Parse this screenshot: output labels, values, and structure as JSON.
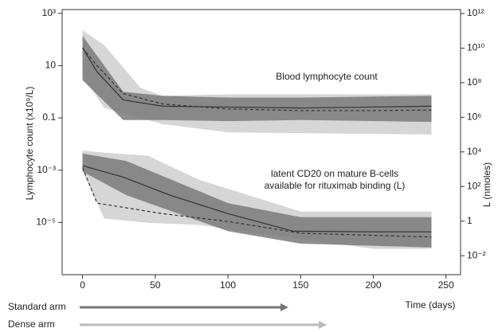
{
  "chart_data": {
    "type": "line",
    "ylabel": "Lymphocyte count (x10⁹/L)",
    "y2label": "L (nmoles)",
    "xlabel": "Time (days)",
    "log_scale": true,
    "xlim": [
      -14,
      260
    ],
    "xticks": [
      0,
      50,
      100,
      150,
      200,
      250
    ],
    "ylim": [
      1e-07,
      1400
    ],
    "yticks": [
      {
        "value": 1000,
        "label": "10³"
      },
      10,
      0.1,
      {
        "value": 0.001,
        "label": "10⁻³"
      },
      {
        "value": 1e-05,
        "label": "10⁻⁵"
      }
    ],
    "y2lim": [
      0.0008,
      1700000000000.0
    ],
    "y2ticks": [
      {
        "value": 1000000000000.0,
        "label": "10¹²"
      },
      {
        "value": 10000000000.0,
        "label": "10¹⁰"
      },
      {
        "value": 100000000.0,
        "label": "10⁸"
      },
      {
        "value": 1000000.0,
        "label": "10⁶"
      },
      {
        "value": 10000,
        "label": "10⁴"
      },
      {
        "value": 100,
        "label": "10²"
      },
      1,
      {
        "value": 0.01,
        "label": "10⁻²"
      }
    ],
    "bands": [
      {
        "x": [
          0,
          15,
          40,
          55,
          100,
          240
        ],
        "upper": [
          230,
          60,
          1.4,
          0.7,
          0.8,
          0.8
        ],
        "lower": [
          4,
          0.24,
          0.1,
          0.058,
          0.028,
          0.023
        ],
        "color": "#cfcfcf"
      },
      {
        "x": [
          0,
          28,
          55,
          100,
          150,
          240
        ],
        "upper": [
          138,
          1,
          0.7,
          0.6,
          0.6,
          0.7
        ],
        "lower": [
          2.8,
          0.083,
          0.083,
          0.075,
          0.083,
          0.07
        ],
        "color": "#7a7a7a"
      },
      {
        "x": [
          0,
          15,
          45,
          80,
          150,
          200,
          240
        ],
        "upper": [
          12000,
          9000,
          6000,
          250,
          3.6,
          3.6,
          3.6
        ],
        "lower": [
          740,
          1.4,
          0.8,
          0.6,
          0.09,
          0.025,
          0.025
        ],
        "color": "#cfcfcf",
        "axis": "y2"
      },
      {
        "x": [
          0,
          30,
          100,
          150,
          240
        ],
        "upper": [
          8000,
          3000,
          11,
          1.7,
          1.7
        ],
        "lower": [
          740,
          32,
          0.26,
          0.05,
          0.03
        ],
        "color": "#7a7a7a",
        "axis": "y2"
      }
    ],
    "series": [
      {
        "x": [
          0,
          10,
          28,
          55,
          100,
          150,
          200,
          240
        ],
        "values": [
          48,
          5.8,
          0.49,
          0.28,
          0.26,
          0.24,
          0.26,
          0.28
        ],
        "color": "#333333"
      },
      {
        "x": [
          0,
          10,
          28,
          55,
          100,
          150,
          200,
          240
        ],
        "values": [
          48,
          10,
          0.85,
          0.34,
          0.22,
          0.19,
          0.19,
          0.2
        ],
        "color": "#333333",
        "dash": true
      },
      {
        "x": [
          0,
          28,
          60,
          100,
          145,
          200,
          240
        ],
        "values": [
          1600,
          350,
          32,
          2.7,
          0.26,
          0.24,
          0.24
        ],
        "color": "#333333",
        "axis": "y2"
      },
      {
        "x": [
          0,
          10,
          55,
          100,
          150,
          240
        ],
        "values": [
          1260,
          11,
          2.7,
          0.95,
          0.2,
          0.12
        ],
        "color": "#333333",
        "dash": true,
        "axis": "y2"
      }
    ],
    "annotations": [
      "Blood lymphocyte count",
      "latent CD20 on mature B-cells",
      "available for rituximab binding (L)"
    ],
    "arms": [
      "Standard arm",
      "Dense arm"
    ]
  }
}
